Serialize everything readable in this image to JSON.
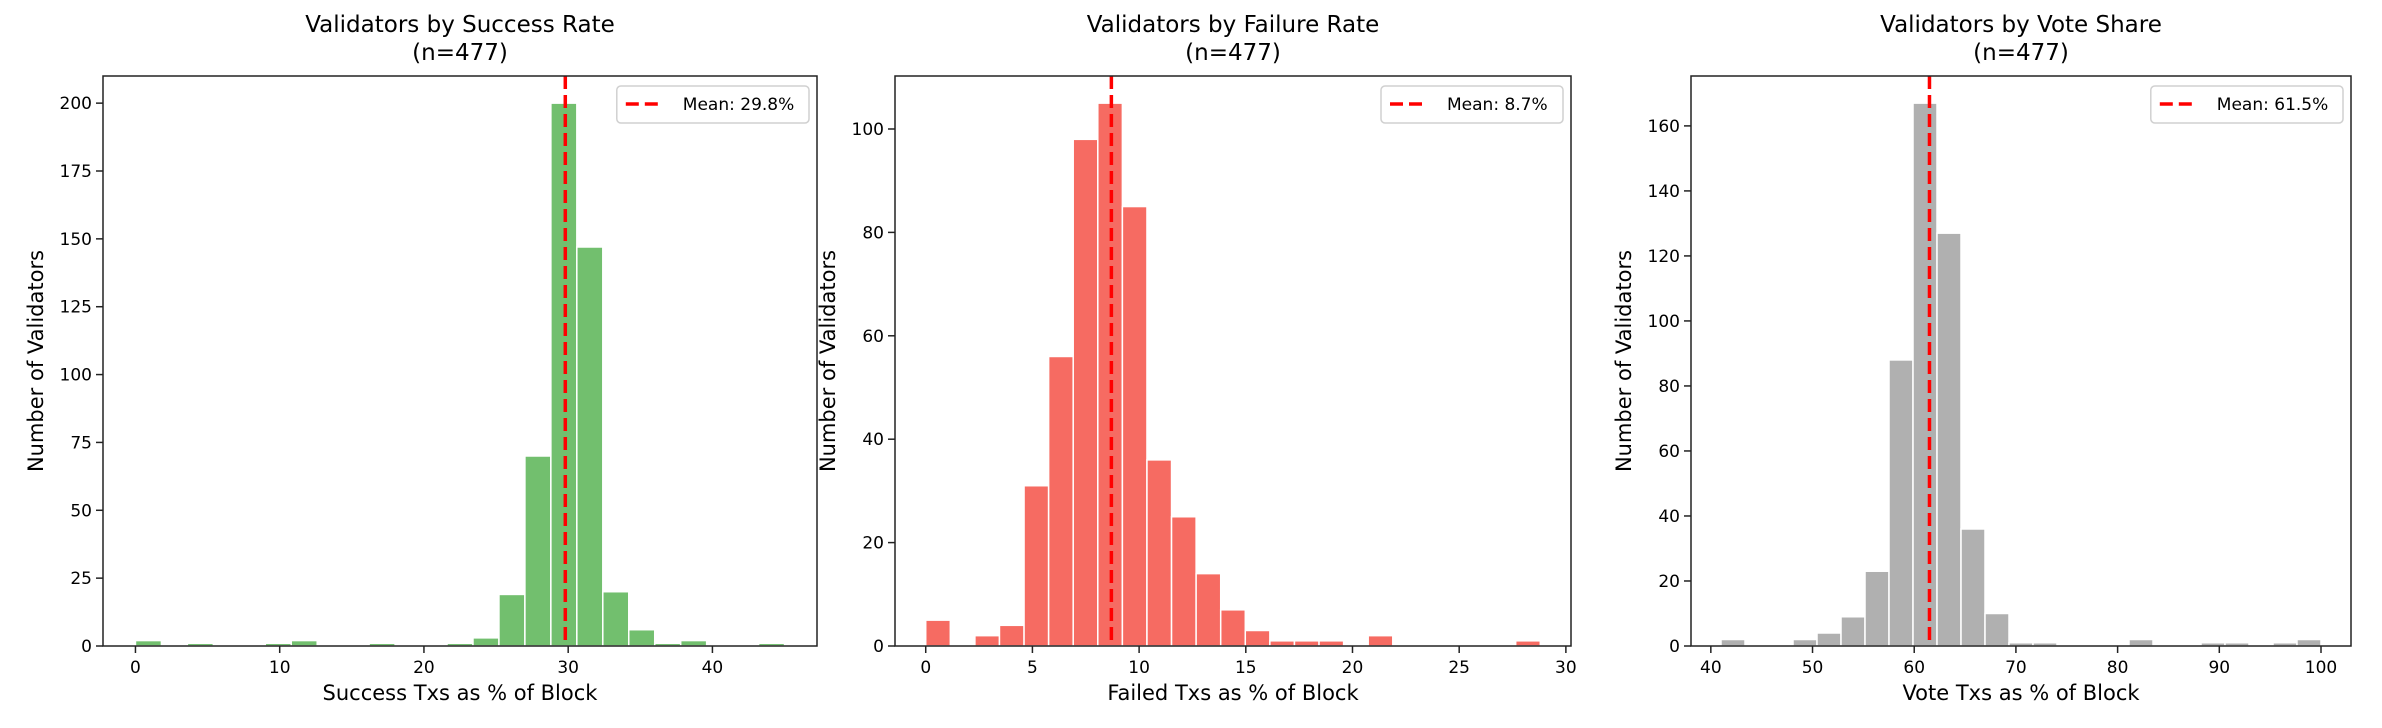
{
  "chart_data": [
    {
      "type": "bar",
      "title": "Validators by Success Rate",
      "subtitle": "(n=477)",
      "xlabel": "Success Txs as % of Block",
      "ylabel": "Number of Validators",
      "bin_range": [
        0,
        45
      ],
      "values": [
        2,
        0,
        1,
        0,
        0,
        1,
        2,
        0,
        0,
        1,
        0,
        0,
        1,
        3,
        19,
        70,
        200,
        147,
        20,
        6,
        1,
        2,
        0,
        0,
        1
      ],
      "xlim": [
        -2.25,
        47.25
      ],
      "ylim": [
        0,
        210
      ],
      "xticks": [
        0,
        10,
        20,
        30,
        40
      ],
      "yticks": [
        0,
        25,
        50,
        75,
        100,
        125,
        150,
        175,
        200
      ],
      "mean": 29.8,
      "legend": "Mean: 29.8%",
      "legend_position": "top-right",
      "color": "#72bf6e",
      "mean_color": "#ff0000"
    },
    {
      "type": "bar",
      "title": "Validators by Failure Rate",
      "subtitle": "(n=477)",
      "xlabel": "Failed Txs as % of Block",
      "ylabel": "Number of Validators",
      "bin_range": [
        0,
        28.8
      ],
      "values": [
        5,
        0,
        2,
        4,
        31,
        56,
        98,
        105,
        85,
        36,
        25,
        14,
        7,
        3,
        1,
        1,
        1,
        0,
        2,
        0,
        0,
        0,
        0,
        0,
        1
      ],
      "xlim": [
        -1.44,
        30.24
      ],
      "ylim": [
        0,
        110.25
      ],
      "xticks": [
        0,
        5,
        10,
        15,
        20,
        25,
        30
      ],
      "yticks": [
        0,
        20,
        40,
        60,
        80,
        100
      ],
      "mean": 8.7,
      "legend": "Mean: 8.7%",
      "legend_position": "top-right",
      "color": "#f66b62",
      "mean_color": "#ff0000"
    },
    {
      "type": "bar",
      "title": "Validators by Vote Share",
      "subtitle": "(n=477)",
      "xlabel": "Vote Txs as % of Block",
      "ylabel": "Number of Validators",
      "bin_range": [
        41,
        100
      ],
      "values": [
        2,
        0,
        0,
        2,
        4,
        9,
        23,
        88,
        167,
        127,
        36,
        10,
        1,
        1,
        0,
        0,
        0,
        2,
        0,
        0,
        1,
        1,
        0,
        1,
        2
      ],
      "xlim": [
        38.05,
        102.95
      ],
      "ylim": [
        0,
        175.35
      ],
      "xticks": [
        40,
        50,
        60,
        70,
        80,
        90,
        100
      ],
      "yticks": [
        0,
        20,
        40,
        60,
        80,
        100,
        120,
        140,
        160
      ],
      "mean": 61.5,
      "legend": "Mean: 61.5%",
      "legend_position": "top-right",
      "color": "#b0b0b0",
      "mean_color": "#ff0000"
    }
  ]
}
